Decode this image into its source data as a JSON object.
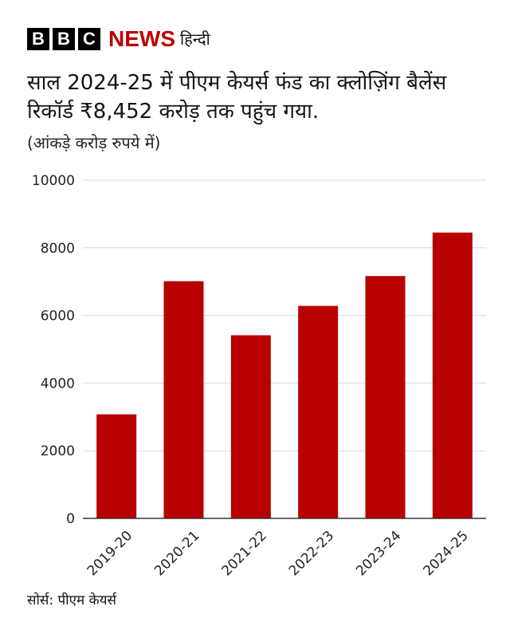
{
  "brand": {
    "letters": [
      "B",
      "B",
      "C"
    ],
    "news": "NEWS",
    "language": "हिन्दी"
  },
  "colors": {
    "bar": "#b80000",
    "grid": "#d9d9d9",
    "brand_red": "#b80000"
  },
  "source": "सोर्स: पीएम केयर्स",
  "chart_data": {
    "type": "bar",
    "title": "साल 2024-25 में पीएम केयर्स फंड का क्लोज़िंग बैलेंस रिकॉर्ड ₹8,452 करोड़ तक पहुंच गया.",
    "subtitle": "(आंकड़े करोड़ रुपये में)",
    "categories": [
      "2019-20",
      "2020-21",
      "2021-22",
      "2022-23",
      "2023-24",
      "2024-25"
    ],
    "values": [
      3076,
      7014,
      5415,
      6284,
      7166,
      8452
    ],
    "ylim": [
      0,
      10000
    ],
    "yticks": [
      "0",
      "2000",
      "4000",
      "6000",
      "8000",
      "10000"
    ],
    "grid": true,
    "legend": "none",
    "xlabel": "",
    "ylabel": ""
  }
}
